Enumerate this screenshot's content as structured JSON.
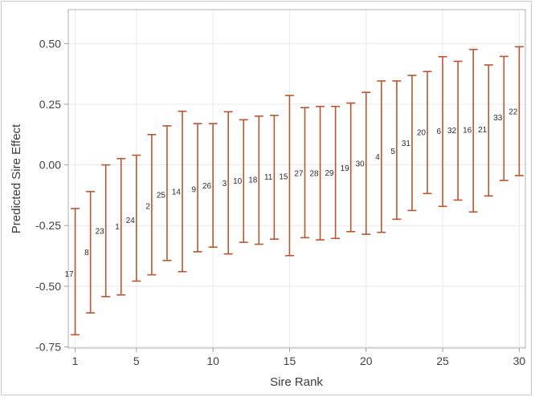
{
  "figure": {
    "background": "#ffffff",
    "outer_border_color": "#c8c8c8",
    "frame_color": "#b0b0b0",
    "grid_color": "#e8e8e8",
    "tick_color": "#9e9e9e",
    "tick_label_color": "#424242",
    "axis_title_color": "#3c3c3c",
    "errorbar_color": "#b8562f",
    "sire_label_color": "#2b2b2b"
  },
  "chart_data": {
    "type": "scatter",
    "subtype": "point-estimates-with-error-bars",
    "title": "",
    "xlabel": "Sire Rank",
    "ylabel": "Predicted Sire Effect",
    "grid": true,
    "legend": "none",
    "xlim": [
      0.55,
      30.4
    ],
    "ylim": [
      -0.755,
      0.64
    ],
    "x_ticks": [
      1,
      5,
      10,
      15,
      20,
      25,
      30
    ],
    "x_tick_labels": [
      "1",
      "5",
      "10",
      "15",
      "20",
      "25",
      "30"
    ],
    "y_ticks": [
      -0.75,
      -0.5,
      -0.25,
      0.0,
      0.25,
      0.5
    ],
    "y_tick_labels": [
      "-0.75",
      "-0.50",
      "-0.25",
      "0.00",
      "0.25",
      "0.50"
    ],
    "points": [
      {
        "rank": 1,
        "sire": "17",
        "estimate": -0.45,
        "lower": -0.7,
        "upper": -0.18
      },
      {
        "rank": 2,
        "sire": "8",
        "estimate": -0.36,
        "lower": -0.61,
        "upper": -0.11
      },
      {
        "rank": 3,
        "sire": "23",
        "estimate": -0.272,
        "lower": -0.543,
        "upper": 0.0
      },
      {
        "rank": 4,
        "sire": "1",
        "estimate": -0.255,
        "lower": -0.536,
        "upper": 0.026
      },
      {
        "rank": 5,
        "sire": "24",
        "estimate": -0.228,
        "lower": -0.479,
        "upper": 0.04
      },
      {
        "rank": 6,
        "sire": "2",
        "estimate": -0.17,
        "lower": -0.453,
        "upper": 0.125
      },
      {
        "rank": 7,
        "sire": "25",
        "estimate": -0.124,
        "lower": -0.394,
        "upper": 0.161
      },
      {
        "rank": 8,
        "sire": "14",
        "estimate": -0.11,
        "lower": -0.44,
        "upper": 0.221
      },
      {
        "rank": 9,
        "sire": "9",
        "estimate": -0.1,
        "lower": -0.358,
        "upper": 0.17
      },
      {
        "rank": 10,
        "sire": "26",
        "estimate": -0.085,
        "lower": -0.339,
        "upper": 0.17
      },
      {
        "rank": 11,
        "sire": "3",
        "estimate": -0.075,
        "lower": -0.367,
        "upper": 0.219
      },
      {
        "rank": 12,
        "sire": "10",
        "estimate": -0.065,
        "lower": -0.319,
        "upper": 0.186
      },
      {
        "rank": 13,
        "sire": "18",
        "estimate": -0.06,
        "lower": -0.327,
        "upper": 0.201
      },
      {
        "rank": 14,
        "sire": "11",
        "estimate": -0.05,
        "lower": -0.306,
        "upper": 0.204
      },
      {
        "rank": 15,
        "sire": "15",
        "estimate": -0.048,
        "lower": -0.374,
        "upper": 0.286
      },
      {
        "rank": 16,
        "sire": "27",
        "estimate": -0.035,
        "lower": -0.3,
        "upper": 0.236
      },
      {
        "rank": 17,
        "sire": "28",
        "estimate": -0.034,
        "lower": -0.309,
        "upper": 0.241
      },
      {
        "rank": 18,
        "sire": "29",
        "estimate": -0.032,
        "lower": -0.303,
        "upper": 0.241
      },
      {
        "rank": 19,
        "sire": "19",
        "estimate": -0.013,
        "lower": -0.275,
        "upper": 0.255
      },
      {
        "rank": 20,
        "sire": "30",
        "estimate": 0.005,
        "lower": -0.286,
        "upper": 0.299
      },
      {
        "rank": 21,
        "sire": "4",
        "estimate": 0.033,
        "lower": -0.278,
        "upper": 0.346
      },
      {
        "rank": 22,
        "sire": "5",
        "estimate": 0.057,
        "lower": -0.224,
        "upper": 0.346
      },
      {
        "rank": 23,
        "sire": "31",
        "estimate": 0.09,
        "lower": -0.188,
        "upper": 0.369
      },
      {
        "rank": 24,
        "sire": "20",
        "estimate": 0.135,
        "lower": -0.118,
        "upper": 0.385
      },
      {
        "rank": 25,
        "sire": "6",
        "estimate": 0.14,
        "lower": -0.171,
        "upper": 0.446
      },
      {
        "rank": 26,
        "sire": "32",
        "estimate": 0.142,
        "lower": -0.145,
        "upper": 0.427
      },
      {
        "rank": 27,
        "sire": "16",
        "estimate": 0.144,
        "lower": -0.194,
        "upper": 0.476
      },
      {
        "rank": 28,
        "sire": "21",
        "estimate": 0.146,
        "lower": -0.128,
        "upper": 0.412
      },
      {
        "rank": 29,
        "sire": "33",
        "estimate": 0.195,
        "lower": -0.064,
        "upper": 0.447
      },
      {
        "rank": 30,
        "sire": "22",
        "estimate": 0.22,
        "lower": -0.044,
        "upper": 0.487
      }
    ]
  }
}
